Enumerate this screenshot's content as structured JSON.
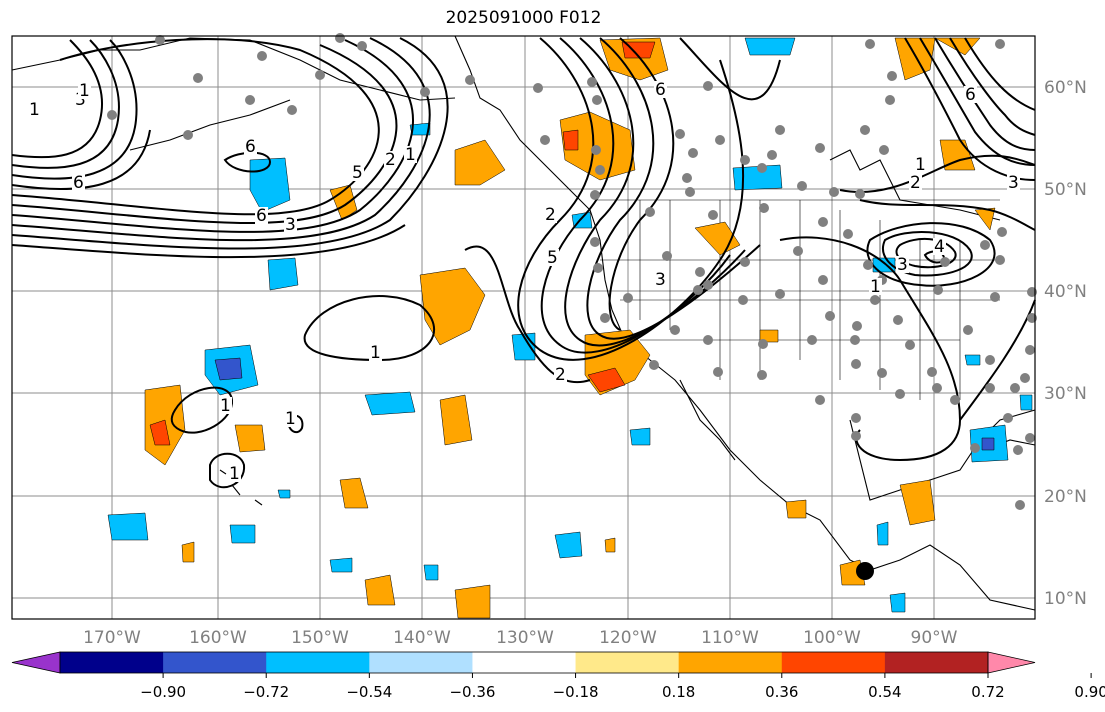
{
  "title": "2025091000 F012",
  "map": {
    "lon_labels": [
      "170°W",
      "160°W",
      "150°W",
      "140°W",
      "130°W",
      "120°W",
      "110°W",
      "100°W",
      "90°W"
    ],
    "lat_labels": [
      "60°N",
      "50°N",
      "40°N",
      "30°N",
      "20°N",
      "10°N"
    ],
    "contour_labels": [
      "1",
      "3",
      "6",
      "1",
      "2",
      "5",
      "3",
      "6",
      "1",
      "2",
      "5",
      "6",
      "1",
      "1",
      "1",
      "1",
      "2",
      "3",
      "6",
      "1",
      "2",
      "3",
      "6",
      "3",
      "1",
      "4"
    ],
    "grid_color": "#8c8c8c",
    "land_line_color": "#000000",
    "station_color": "#808080"
  },
  "colorbar": {
    "colors": [
      "#9933cc",
      "#00008b",
      "#3355cc",
      "#00bfff",
      "#b0e0ff",
      "#ffffff",
      "#ffe98a",
      "#ffa500",
      "#ff4500",
      "#b22222",
      "#ff88aa"
    ],
    "tick_labels": [
      "−0.90",
      "−0.72",
      "−0.54",
      "−0.36",
      "−0.18",
      "0.18",
      "0.36",
      "0.54",
      "0.72",
      "0.90"
    ]
  }
}
